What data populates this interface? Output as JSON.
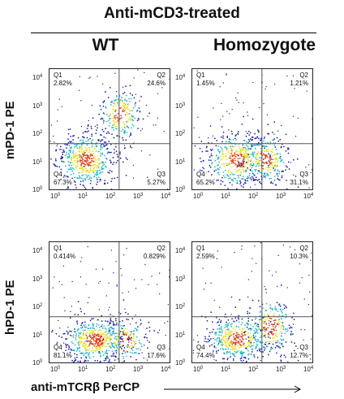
{
  "title": "Anti-mCD3-treated",
  "columns": [
    "WT",
    "Homozygote"
  ],
  "row_labels": [
    "mPD-1 PE",
    "hPD-1 PE"
  ],
  "x_axis_label": "anti-mTCRβ PerCP",
  "tick_base": "10",
  "tick_exponents": [
    "0",
    "1",
    "2",
    "3",
    "4"
  ],
  "quadrant_names": [
    "Q1",
    "Q2",
    "Q3",
    "Q4"
  ],
  "panels": [
    {
      "id": "mpd1-wt",
      "q1": "2.82%",
      "q2": "24.6%",
      "q3": "5.27%",
      "q4": "67.3%",
      "clusters": [
        {
          "x": 1.2,
          "y": 1.0,
          "n": 520,
          "sx": 0.38,
          "sy": 0.35
        },
        {
          "x": 2.35,
          "y": 2.5,
          "n": 210,
          "sx": 0.28,
          "sy": 0.35
        }
      ]
    },
    {
      "id": "mpd1-homozygote",
      "q1": "1.45%",
      "q2": "1.21%",
      "q3": "31.1%",
      "q4": "65.2%",
      "clusters": [
        {
          "x": 1.45,
          "y": 1.0,
          "n": 470,
          "sx": 0.42,
          "sy": 0.35
        },
        {
          "x": 2.45,
          "y": 1.0,
          "n": 260,
          "sx": 0.3,
          "sy": 0.33
        }
      ]
    },
    {
      "id": "hpd1-wt",
      "q1": "0.414%",
      "q2": "0.829%",
      "q3": "17.6%",
      "q4": "81.1%",
      "clusters": [
        {
          "x": 1.5,
          "y": 0.75,
          "n": 540,
          "sx": 0.42,
          "sy": 0.3
        },
        {
          "x": 2.5,
          "y": 0.75,
          "n": 150,
          "sx": 0.3,
          "sy": 0.3
        }
      ]
    },
    {
      "id": "hpd1-homozygote",
      "q1": "2.59%",
      "q2": "10.3%",
      "q3": "12.7%",
      "q4": "74.4%",
      "clusters": [
        {
          "x": 1.5,
          "y": 0.8,
          "n": 460,
          "sx": 0.42,
          "sy": 0.3
        },
        {
          "x": 2.6,
          "y": 1.2,
          "n": 230,
          "sx": 0.3,
          "sy": 0.4
        }
      ]
    }
  ],
  "colors": {
    "density_low": "#1a1aa6",
    "density_mid": "#1fb8c8",
    "density_high": "#e8e020",
    "density_peak": "#e0401a",
    "gate_line": "#555555"
  }
}
